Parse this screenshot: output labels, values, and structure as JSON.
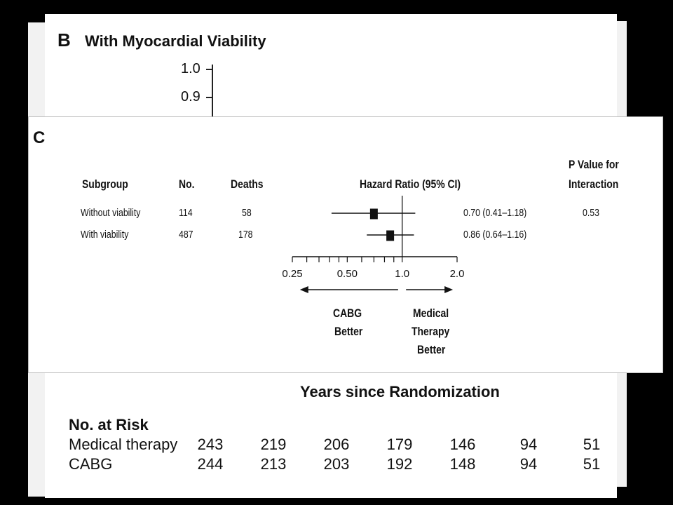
{
  "panel_b": {
    "letter": "B",
    "title": "With Myocardial Viability",
    "y_ticks": [
      "1.0",
      "0.9"
    ],
    "x_axis_label": "Years since Randomization",
    "risk_table": {
      "title": "No. at Risk",
      "rows": [
        {
          "name": "Medical therapy",
          "values": [
            "243",
            "219",
            "206",
            "179",
            "146",
            "94",
            "51"
          ]
        },
        {
          "name": "CABG",
          "values": [
            "244",
            "213",
            "203",
            "192",
            "148",
            "94",
            "51"
          ]
        }
      ]
    }
  },
  "panel_c": {
    "letter": "C",
    "headers": {
      "subgroup": "Subgroup",
      "no": "No.",
      "deaths": "Deaths",
      "hr": "Hazard Ratio (95% CI)",
      "p_line1": "P Value for",
      "p_line2": "Interaction"
    },
    "rows": [
      {
        "subgroup": "Without viability",
        "no": "114",
        "deaths": "58",
        "hr_text": "0.70 (0.41–1.18)",
        "p": "0.53"
      },
      {
        "subgroup": "With viability",
        "no": "487",
        "deaths": "178",
        "hr_text": "0.86 (0.64–1.16)",
        "p": ""
      }
    ],
    "direction_left": [
      "CABG",
      "Better"
    ],
    "direction_right": [
      "Medical",
      "Therapy",
      "Better"
    ]
  },
  "chart_data": [
    {
      "type": "forest",
      "x_scale": "log",
      "xlim": [
        0.25,
        2.0
      ],
      "x_ticks": [
        "0.25",
        "0.50",
        "1.0",
        "2.0"
      ],
      "reference_line": 1.0,
      "xlabel": "Hazard Ratio (95% CI)",
      "points": [
        {
          "label": "Without viability",
          "hr": 0.7,
          "lower": 0.41,
          "upper": 1.18
        },
        {
          "label": "With viability",
          "hr": 0.86,
          "lower": 0.64,
          "upper": 1.16
        }
      ]
    }
  ]
}
